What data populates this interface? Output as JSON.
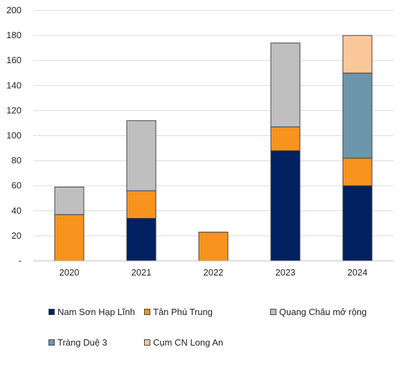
{
  "chart_data": {
    "type": "bar",
    "stacked": true,
    "categories": [
      "2020",
      "2021",
      "2022",
      "2023",
      "2024"
    ],
    "series": [
      {
        "name": "Nam Sơn Hạp Lĩnh",
        "color": "#002060",
        "values": [
          0,
          34,
          0,
          88,
          60
        ]
      },
      {
        "name": "Tân Phú Trung",
        "color": "#F7941D",
        "values": [
          37,
          22,
          23,
          19,
          22
        ]
      },
      {
        "name": "Quang Châu mở rộng",
        "color": "#BFBFBF",
        "values": [
          22,
          56,
          0,
          67,
          0
        ]
      },
      {
        "name": "Tràng Duệ 3",
        "color": "#6C96AC",
        "values": [
          0,
          0,
          0,
          0,
          68
        ]
      },
      {
        "name": "Cụm CN Long An",
        "color": "#FAC898",
        "values": [
          0,
          0,
          0,
          0,
          30
        ]
      }
    ],
    "ylim": [
      0,
      200
    ],
    "yticks": [
      "-",
      "20",
      "40",
      "60",
      "80",
      "100",
      "120",
      "140",
      "160",
      "180",
      "200"
    ],
    "grid": true,
    "legend_position": "bottom"
  }
}
